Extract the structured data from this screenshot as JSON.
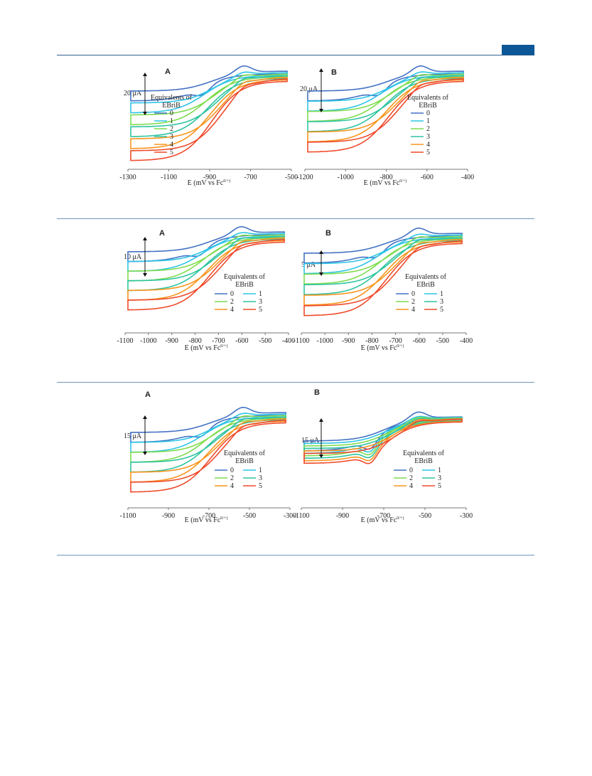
{
  "header": {
    "accent_color": "#0b5797"
  },
  "colors": [
    "#4472c4",
    "#2ec5e6",
    "#7fdc4e",
    "#2fc4a0",
    "#f7941d",
    "#ef4b2c"
  ],
  "figures": [
    {
      "panels": [
        {
          "letter": "A",
          "scale_label": "20 μA",
          "xlabel": "E (mV vs Fc0/+)",
          "ticks": [
            "-1300",
            "-1100",
            "-900",
            "-700",
            "-500"
          ],
          "legend_title": [
            "Equivalents of",
            "EBriB"
          ],
          "legend_entries": [
            "0",
            "1",
            "2",
            "3",
            "4",
            "5"
          ]
        },
        {
          "letter": "B",
          "scale_label": "20 μA",
          "xlabel": "E (mV vs Fc0/+)",
          "ticks": [
            "-1200",
            "-1000",
            "-800",
            "-600",
            "-400"
          ],
          "legend_title": [
            "Equivalents of",
            "EBriB"
          ],
          "legend_entries": [
            "0",
            "1",
            "2",
            "3",
            "4",
            "5"
          ]
        }
      ]
    },
    {
      "panels": [
        {
          "letter": "A",
          "scale_label": "10 μA",
          "xlabel": "E (mV vs Fc0/+)",
          "ticks": [
            "-1100",
            "-1000",
            "-900",
            "-800",
            "-700",
            "-600",
            "-500",
            "-400"
          ],
          "legend_title": [
            "Equivalents of",
            "EBriB"
          ],
          "legend_entries": [
            "0",
            "1",
            "2",
            "3",
            "4",
            "5"
          ]
        },
        {
          "letter": "B",
          "scale_label": "5 μA",
          "xlabel": "E (mV vs Fc0/+)",
          "ticks": [
            "-1100",
            "-1000",
            "-900",
            "-800",
            "-700",
            "-600",
            "-500",
            "-400"
          ],
          "legend_title": [
            "Equivalents of",
            "EBriB"
          ],
          "legend_entries": [
            "0",
            "1",
            "2",
            "3",
            "4",
            "5"
          ]
        }
      ]
    },
    {
      "panels": [
        {
          "letter": "A",
          "scale_label": "15 μA",
          "xlabel": "E (mV vs Fc0/+)",
          "ticks": [
            "-1100",
            "-900",
            "-700",
            "-500",
            "-300"
          ],
          "legend_title": [
            "Equivalents of",
            "EBriB"
          ],
          "legend_entries": [
            "0",
            "1",
            "2",
            "3",
            "4",
            "5"
          ]
        },
        {
          "letter": "B",
          "scale_label": "15 μA",
          "xlabel": "E (mV vs Fc0/+)",
          "ticks": [
            "-1100",
            "-900",
            "-700",
            "-500",
            "-300"
          ],
          "legend_title": [
            "Equivalents of",
            "EBriB"
          ],
          "legend_entries": [
            "0",
            "1",
            "2",
            "3",
            "4",
            "5"
          ]
        }
      ]
    }
  ]
}
